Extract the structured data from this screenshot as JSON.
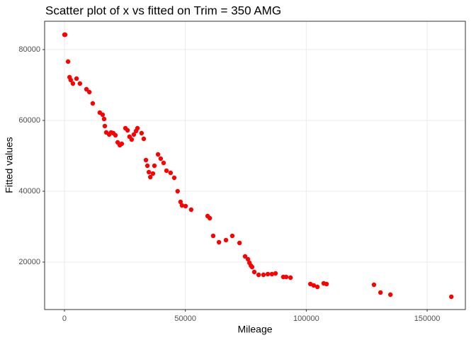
{
  "chart_data": {
    "type": "scatter",
    "title": "Scatter plot of x vs fitted on Trim = 350 AMG",
    "x_label": "Mileage",
    "y_label": "Fitted values",
    "color": "#ff0000",
    "grid": true,
    "xlim": [
      -8200,
      165800
    ],
    "ylim": [
      6600,
      88000
    ],
    "xticks": [
      0,
      50000,
      100000,
      150000
    ],
    "yticks": [
      20000,
      40000,
      60000,
      80000
    ],
    "x": [
      0,
      100,
      300,
      1500,
      2100,
      2600,
      3500,
      5000,
      6400,
      9100,
      10300,
      11700,
      14600,
      15800,
      16400,
      16700,
      17300,
      18500,
      19300,
      20200,
      21100,
      22000,
      22900,
      23700,
      25200,
      26100,
      26900,
      27800,
      28700,
      29600,
      30200,
      31900,
      32800,
      33700,
      34300,
      34900,
      35500,
      36600,
      37200,
      38700,
      39800,
      41000,
      42200,
      43900,
      45400,
      46800,
      48000,
      48600,
      50100,
      52400,
      59200,
      60100,
      61500,
      63900,
      66800,
      69400,
      72400,
      74700,
      75900,
      76500,
      77100,
      77600,
      78500,
      80300,
      82300,
      84100,
      85800,
      87300,
      90500,
      91700,
      93500,
      101700,
      103100,
      104600,
      107200,
      108400,
      128000,
      130700,
      134800,
      160000
    ],
    "values": [
      84200,
      84200,
      84200,
      76600,
      72200,
      71400,
      70400,
      71800,
      70400,
      68800,
      68000,
      64800,
      62200,
      61600,
      60400,
      58400,
      56600,
      56000,
      56600,
      56400,
      55800,
      53800,
      53000,
      53400,
      57800,
      57200,
      55400,
      54600,
      56000,
      57000,
      57800,
      56400,
      54800,
      48800,
      47200,
      45400,
      44000,
      45000,
      47200,
      50400,
      49200,
      48000,
      45800,
      45200,
      43800,
      40000,
      37000,
      36000,
      35800,
      34800,
      33000,
      32400,
      27400,
      25600,
      26200,
      27400,
      25400,
      21600,
      20800,
      19800,
      19000,
      18600,
      17200,
      16400,
      16400,
      16600,
      16600,
      16800,
      15800,
      15800,
      15600,
      13800,
      13400,
      13000,
      14000,
      13800,
      13600,
      11400,
      10800,
      10200
    ]
  }
}
